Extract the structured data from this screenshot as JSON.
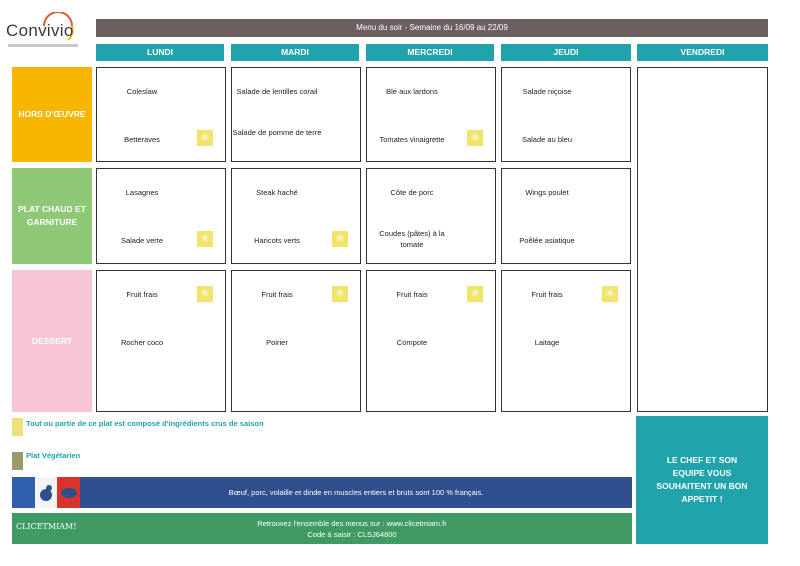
{
  "logo": {
    "text": "Convivio"
  },
  "header": {
    "title": "Menu du soir - Semaine du 16/09 au 22/09"
  },
  "days": [
    "LUNDI",
    "MARDI",
    "MERCREDI",
    "JEUDI",
    "VENDREDI"
  ],
  "rows": [
    {
      "label": "HORS D'ŒUVRE",
      "color": "#f7b500"
    },
    {
      "label": "PLAT CHAUD ET GARNITURE",
      "color": "#8fc876"
    },
    {
      "label": "DESSERT",
      "color": "#f7c5d6"
    }
  ],
  "menu": {
    "lundi": {
      "hors_doeuvre": [
        "Coleslaw",
        "Betteraves"
      ],
      "plat": [
        "Lasagnes",
        "Salade verte"
      ],
      "dessert": [
        "Fruit frais",
        "Rocher coco"
      ]
    },
    "mardi": {
      "hors_doeuvre": [
        "Salade de lentilles corail",
        "Salade de pomme de terre"
      ],
      "plat": [
        "Steak haché",
        "Haricots verts"
      ],
      "dessert": [
        "Fruit frais",
        "Poirier"
      ]
    },
    "mercredi": {
      "hors_doeuvre": [
        "Blé aux lardons",
        "Tomates vinaigrette"
      ],
      "plat": [
        "Côte de porc",
        "Coudes (pâtes) à la tomate"
      ],
      "dessert": [
        "Fruit frais",
        "Compote"
      ]
    },
    "jeudi": {
      "hors_doeuvre": [
        "Salade niçoise",
        "Salade au bleu"
      ],
      "plat": [
        "Wings poulet",
        "Poêlée asiatique"
      ],
      "dessert": [
        "Fruit frais",
        "Laitage"
      ]
    }
  },
  "legend": {
    "seasonal": "Tout ou partie de ce plat est composé d'ingrédients crus de saison",
    "vegetarian": "Plat Végétarien"
  },
  "origin_band": {
    "text": "Bœuf, porc, volaille et dinde en muscles entiers et bruts sont 100 % français."
  },
  "website_band": {
    "logo": "CLICETMIAM!",
    "line1": "Retrouvez l'ensemble des menus sur : www.clicetmiam.fr",
    "line2": "Code à saisir : CLSJ64800"
  },
  "farewell": {
    "text": "LE CHEF ET SON EQUIPE VOUS SOUHAITENT UN BON APPETIT !"
  },
  "colors": {
    "teal": "#20a3ab",
    "blue_band": "#2f4f8f",
    "green_band": "#3f9b63",
    "title_bar": "#6b5f60"
  }
}
